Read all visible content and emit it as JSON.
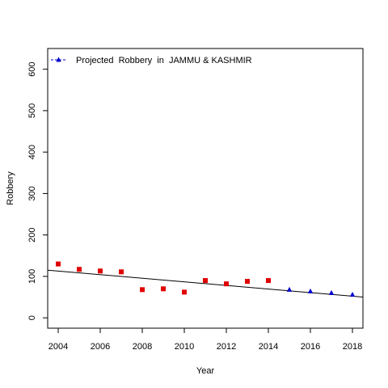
{
  "chart_data": {
    "type": "scatter",
    "title": "",
    "xlabel": "Year",
    "ylabel": "Robbery",
    "xlim": [
      2003.5,
      2018.5
    ],
    "ylim": [
      -25,
      650
    ],
    "x_ticks": [
      2004,
      2006,
      2008,
      2010,
      2012,
      2014,
      2016,
      2018
    ],
    "x_tick_labels": [
      "2004",
      "2006",
      "2008",
      "2010",
      "2012",
      "2014",
      "2016",
      "2018"
    ],
    "y_ticks": [
      0,
      100,
      200,
      300,
      400,
      500,
      600
    ],
    "y_tick_labels": [
      "0",
      "100",
      "200",
      "300",
      "400",
      "500",
      "600"
    ],
    "grid": false,
    "legend_position": "top-left",
    "series": [
      {
        "marker": "square",
        "color": "#e00000",
        "x": [
          2004,
          2005,
          2006,
          2007,
          2008,
          2009,
          2010,
          2011,
          2012,
          2013,
          2014
        ],
        "y": [
          130,
          117,
          113,
          111,
          68,
          70,
          62,
          90,
          82,
          88,
          90
        ]
      },
      {
        "name": "Projected  Robbery  in  JAMMU & KASHMIR",
        "marker": "triangle",
        "color": "#0000cc",
        "x": [
          2015,
          2016,
          2017,
          2018
        ],
        "y": [
          68,
          64,
          60,
          56
        ]
      }
    ],
    "trend_line": {
      "color": "#000000",
      "x": [
        2003.5,
        2018.5
      ],
      "y": [
        115,
        50
      ]
    }
  }
}
